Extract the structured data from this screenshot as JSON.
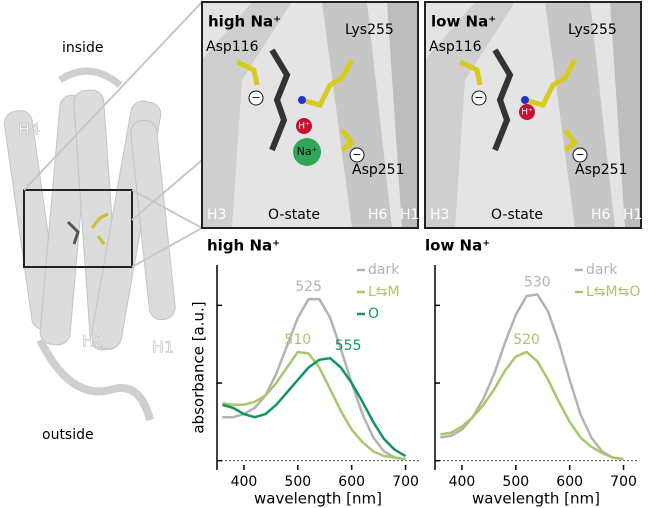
{
  "structure": {
    "overview": {
      "inside": "inside",
      "outside": "outside",
      "helices": [
        "H4",
        "H2",
        "H1"
      ]
    },
    "panels": [
      {
        "title": "high Na⁺",
        "residues": [
          "Asp116",
          "Lys255",
          "Asp251"
        ],
        "helices": [
          "H3",
          "H6",
          "H1"
        ],
        "state": "O-state",
        "charge": "−",
        "proton": "H⁺",
        "sodium": "Na⁺"
      },
      {
        "title": "low Na⁺",
        "residues": [
          "Asp116",
          "Lys255",
          "Asp251"
        ],
        "helices": [
          "H3",
          "H6",
          "H1"
        ],
        "state": "O-state",
        "charge": "−",
        "proton": "H⁺"
      }
    ]
  },
  "chart_data": [
    {
      "type": "line",
      "title": "high Na⁺",
      "x_label": "wavelength [nm]",
      "y_label": "absorbance [a.u.]",
      "x": [
        360,
        380,
        400,
        420,
        440,
        460,
        480,
        500,
        520,
        540,
        560,
        580,
        600,
        620,
        640,
        660,
        680,
        700
      ],
      "series": [
        {
          "name": "dark",
          "color": "#b3b3b3",
          "peak_label": "525",
          "values": [
            0.28,
            0.28,
            0.3,
            0.34,
            0.42,
            0.56,
            0.74,
            0.92,
            1.04,
            1.04,
            0.92,
            0.72,
            0.5,
            0.3,
            0.15,
            0.06,
            0.02,
            0.01
          ]
        },
        {
          "name": "L⇆M",
          "color": "#a9c76a",
          "peak_label": "510",
          "values": [
            0.37,
            0.36,
            0.36,
            0.38,
            0.42,
            0.5,
            0.6,
            0.7,
            0.69,
            0.6,
            0.46,
            0.32,
            0.2,
            0.12,
            0.06,
            0.03,
            0.02,
            0.01
          ]
        },
        {
          "name": "O",
          "color": "#13936a",
          "peak_label": "555",
          "values": [
            0.36,
            0.34,
            0.3,
            0.28,
            0.3,
            0.36,
            0.44,
            0.52,
            0.6,
            0.65,
            0.66,
            0.6,
            0.5,
            0.38,
            0.25,
            0.14,
            0.07,
            0.03
          ]
        }
      ],
      "xlim": [
        350,
        725
      ],
      "xticks": [
        400,
        500,
        600,
        700
      ],
      "ylim": [
        -0.06,
        1.26
      ],
      "yticks": [
        0,
        0.5,
        1
      ],
      "legend": "upper right"
    },
    {
      "type": "line",
      "title": "low Na⁺",
      "x_label": "wavelength [nm]",
      "x": [
        360,
        380,
        400,
        420,
        440,
        460,
        480,
        500,
        520,
        540,
        560,
        580,
        600,
        620,
        640,
        660,
        680,
        700
      ],
      "series": [
        {
          "name": "dark",
          "color": "#b3b3b3",
          "peak_label": "530",
          "values": [
            0.15,
            0.16,
            0.2,
            0.28,
            0.4,
            0.56,
            0.76,
            0.94,
            1.06,
            1.07,
            0.96,
            0.76,
            0.52,
            0.3,
            0.15,
            0.06,
            0.02,
            0.01
          ]
        },
        {
          "name": "L⇆M⇆O",
          "color": "#a9c76a",
          "peak_label": "520",
          "values": [
            0.17,
            0.18,
            0.22,
            0.28,
            0.36,
            0.46,
            0.58,
            0.67,
            0.7,
            0.64,
            0.52,
            0.38,
            0.25,
            0.15,
            0.09,
            0.05,
            0.02,
            0.01
          ]
        }
      ],
      "xlim": [
        350,
        725
      ],
      "xticks": [
        400,
        500,
        600,
        700
      ],
      "ylim": [
        -0.06,
        1.26
      ],
      "yticks": [
        0,
        0.5,
        1
      ],
      "legend": "upper right"
    }
  ]
}
